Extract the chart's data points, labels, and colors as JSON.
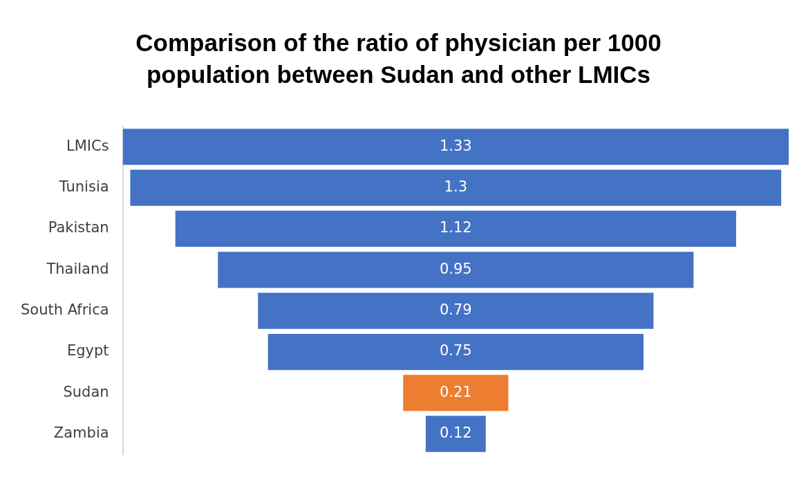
{
  "chart_data": {
    "type": "other",
    "title": "Comparison of the ratio of physician per 1000 population between Sudan and other LMICs",
    "categories": [
      "LMICs",
      "Tunisia",
      "Pakistan",
      "Thailand",
      "South Africa",
      "Egypt",
      "Sudan",
      "Zambia"
    ],
    "values": [
      1.33,
      1.3,
      1.12,
      0.95,
      0.79,
      0.75,
      0.21,
      0.12
    ],
    "colors": [
      "#4472c4",
      "#4472c4",
      "#4472c4",
      "#4472c4",
      "#4472c4",
      "#4472c4",
      "#ed7d31",
      "#4472c4"
    ],
    "data_labels": true
  }
}
